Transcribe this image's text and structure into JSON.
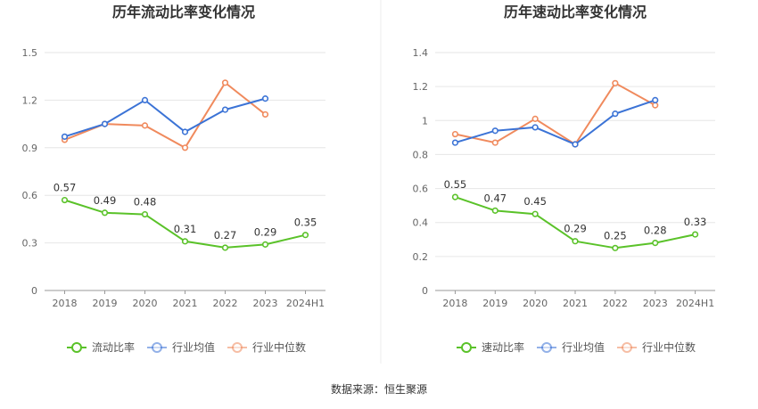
{
  "chart_data": [
    {
      "type": "line",
      "title": "历年流动比率变化情况",
      "categories": [
        "2018",
        "2019",
        "2020",
        "2021",
        "2022",
        "2023",
        "2024H1"
      ],
      "yticks": [
        "0",
        "0.3",
        "0.6",
        "0.9",
        "1.2",
        "1.5"
      ],
      "ylim": [
        0,
        1.5
      ],
      "grid": true,
      "legend_position": "bottom",
      "series": [
        {
          "name": "流动比率",
          "color": "#5ac229",
          "values": [
            0.57,
            0.49,
            0.48,
            0.31,
            0.27,
            0.29,
            0.35
          ],
          "labels": [
            "0.57",
            "0.49",
            "0.48",
            "0.31",
            "0.27",
            "0.29",
            "0.35"
          ]
        },
        {
          "name": "行业均值",
          "color": "#3b73d6",
          "values": [
            0.97,
            1.05,
            1.2,
            1.0,
            1.14,
            1.21,
            null
          ]
        },
        {
          "name": "行业中位数",
          "color": "#f08a5d",
          "values": [
            0.95,
            1.05,
            1.04,
            0.9,
            1.31,
            1.11,
            null
          ]
        }
      ]
    },
    {
      "type": "line",
      "title": "历年速动比率变化情况",
      "categories": [
        "2018",
        "2019",
        "2020",
        "2021",
        "2022",
        "2023",
        "2024H1"
      ],
      "yticks": [
        "0",
        "0.2",
        "0.4",
        "0.6",
        "0.8",
        "1",
        "1.2",
        "1.4"
      ],
      "ylim": [
        0,
        1.4
      ],
      "grid": true,
      "legend_position": "bottom",
      "series": [
        {
          "name": "速动比率",
          "color": "#5ac229",
          "values": [
            0.55,
            0.47,
            0.45,
            0.29,
            0.25,
            0.28,
            0.33
          ],
          "labels": [
            "0.55",
            "0.47",
            "0.45",
            "0.29",
            "0.25",
            "0.28",
            "0.33"
          ]
        },
        {
          "name": "行业均值",
          "color": "#3b73d6",
          "values": [
            0.87,
            0.94,
            0.96,
            0.86,
            1.04,
            1.12,
            null
          ]
        },
        {
          "name": "行业中位数",
          "color": "#f08a5d",
          "values": [
            0.92,
            0.87,
            1.01,
            0.86,
            1.22,
            1.09,
            null
          ]
        }
      ]
    }
  ],
  "footer": {
    "source": "数据来源：恒生聚源"
  }
}
